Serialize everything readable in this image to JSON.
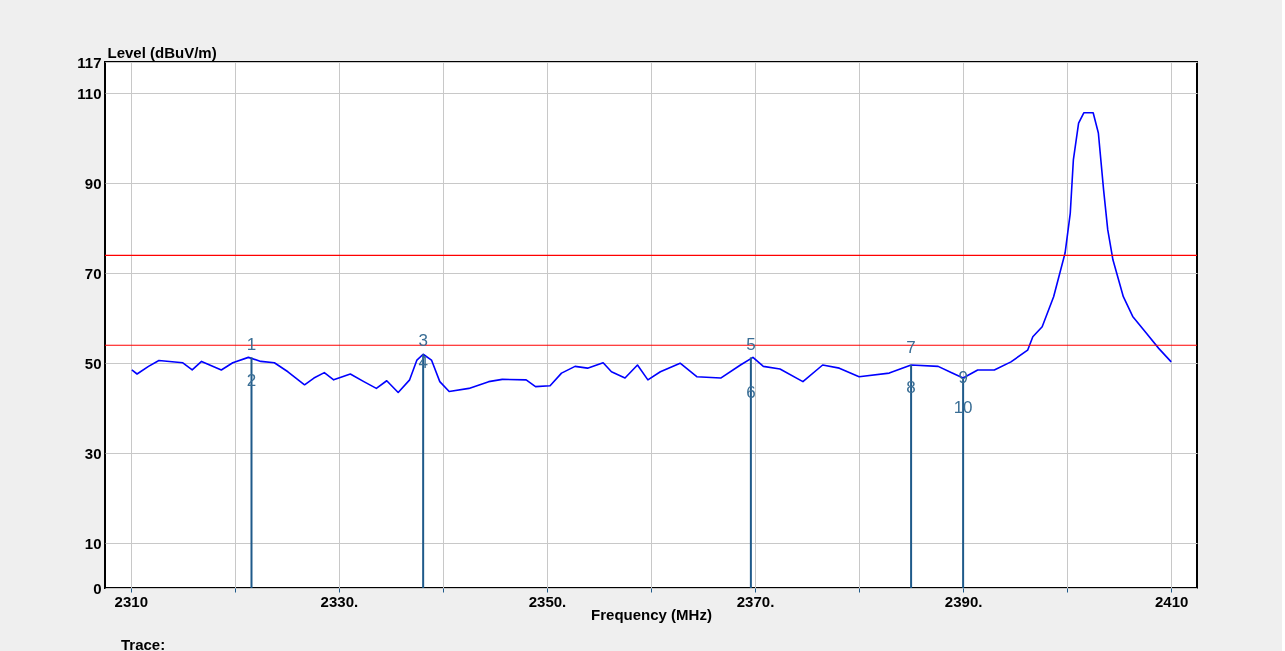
{
  "chart_data": {
    "type": "line",
    "xlabel": "Frequency (MHz)",
    "ylabel": "Level (dBuV/m)",
    "xlim": [
      2308,
      2412
    ],
    "ylim": [
      0,
      117
    ],
    "xticks": [
      2310,
      {
        "value": 2320,
        "label": null
      },
      {
        "value": 2330,
        "label": "2330."
      },
      {
        "value": 2340,
        "label": null
      },
      {
        "value": 2350,
        "label": "2350."
      },
      {
        "value": 2360,
        "label": null
      },
      {
        "value": 2370,
        "label": "2370."
      },
      {
        "value": 2380,
        "label": null
      },
      {
        "value": 2390,
        "label": "2390."
      },
      {
        "value": 2400,
        "label": null
      },
      2410
    ],
    "yticks": [
      0,
      10,
      30,
      50,
      70,
      90,
      110,
      117
    ],
    "grid": true,
    "series": [
      {
        "color": "#0000ff",
        "x": [
          2310.1,
          2310.6,
          2311.7,
          2312.7,
          2315.0,
          2315.9,
          2316.8,
          2318.7,
          2319.8,
          2321.3,
          2322.5,
          2323.8,
          2325.1,
          2326.7,
          2327.6,
          2328.6,
          2329.5,
          2331.1,
          2332.4,
          2333.6,
          2334.6,
          2335.7,
          2336.8,
          2337.5,
          2338.1,
          2338.9,
          2339.7,
          2340.6,
          2342.5,
          2344.4,
          2345.7,
          2348.0,
          2348.9,
          2350.3,
          2351.4,
          2352.7,
          2353.9,
          2355.4,
          2356.2,
          2357.5,
          2358.7,
          2359.7,
          2360.9,
          2362.8,
          2364.4,
          2366.7,
          2368.6,
          2369.8,
          2370.8,
          2372.4,
          2374.6,
          2376.5,
          2378.1,
          2380.0,
          2382.9,
          2385.0,
          2387.6,
          2388.9,
          2390.0,
          2391.4,
          2393.0,
          2394.6,
          2396.2,
          2396.7,
          2397.6,
          2398.7,
          2399.8,
          2400.3,
          2400.6,
          2401.1,
          2401.6,
          2402.5,
          2403.0,
          2403.5,
          2403.9,
          2404.4,
          2405.4,
          2406.3,
          2407.6,
          2408.8,
          2410.0
        ],
        "values": [
          48.5,
          47.6,
          49.3,
          50.6,
          50.1,
          48.5,
          50.4,
          48.5,
          50.1,
          51.3,
          50.4,
          50.1,
          48.1,
          45.2,
          46.7,
          47.9,
          46.3,
          47.6,
          45.9,
          44.4,
          46.1,
          43.5,
          46.3,
          50.7,
          52.0,
          50.7,
          45.9,
          43.7,
          44.4,
          45.9,
          46.4,
          46.3,
          44.8,
          45.0,
          47.8,
          49.3,
          48.9,
          50.1,
          48.1,
          46.7,
          49.6,
          46.3,
          48.1,
          50.0,
          47.0,
          46.7,
          49.6,
          51.3,
          49.3,
          48.7,
          45.9,
          49.6,
          48.9,
          47.0,
          47.8,
          49.6,
          49.3,
          47.9,
          46.7,
          48.5,
          48.5,
          50.3,
          52.9,
          55.9,
          58.1,
          64.8,
          74.5,
          83.4,
          95.3,
          103.4,
          105.7,
          105.7,
          101.2,
          88.6,
          79.7,
          73.0,
          64.8,
          60.4,
          56.7,
          53.3,
          50.3
        ]
      },
      {
        "type": "bar",
        "color": "#1f5a8a",
        "x": [
          2321.6,
          2338.1,
          2369.6,
          2385.0,
          2390.0
        ],
        "values": [
          51.3,
          52.0,
          51.3,
          49.6,
          46.7
        ]
      }
    ],
    "ref_lines": [
      {
        "axis": "y",
        "value": 74,
        "label": null,
        "color": "#ff0000"
      },
      {
        "axis": "y",
        "value": 54,
        "label": null,
        "color": "#ff0000"
      }
    ],
    "annotations": [
      {
        "text": "1",
        "x": 2321.6,
        "y": 54
      },
      {
        "text": "2",
        "x": 2321.6,
        "y": 46
      },
      {
        "text": "3",
        "x": 2338.1,
        "y": 55
      },
      {
        "text": "4",
        "x": 2338.1,
        "y": 50
      },
      {
        "text": "5",
        "x": 2369.6,
        "y": 54
      },
      {
        "text": "6",
        "x": 2369.6,
        "y": 43.4
      },
      {
        "text": "7",
        "x": 2385.0,
        "y": 53.3
      },
      {
        "text": "8",
        "x": 2385.0,
        "y": 44.5
      },
      {
        "text": "9",
        "x": 2390.0,
        "y": 46.7
      },
      {
        "text": "10",
        "x": 2390.0,
        "y": 40
      },
      "Trace:"
    ]
  }
}
